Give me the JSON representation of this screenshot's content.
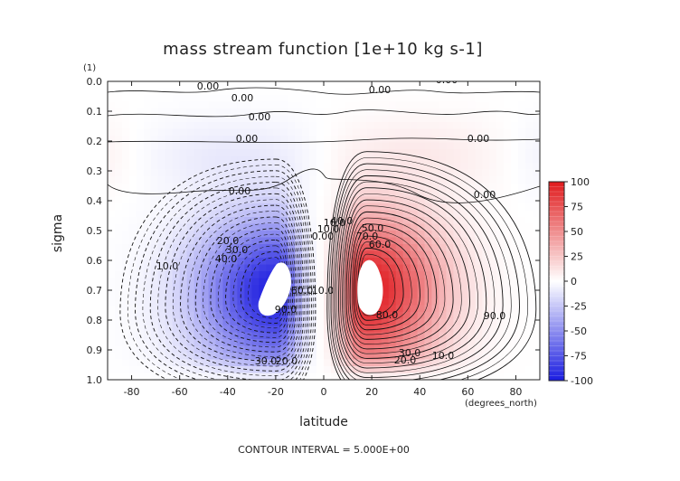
{
  "chart_data": {
    "type": "heatmap",
    "title": "mass stream function [1e+10 kg s-1]",
    "xlabel": "latitude",
    "ylabel": "sigma",
    "x_units": "(degrees_north)",
    "y_units_label": "(1)",
    "xlim": [
      -90,
      90
    ],
    "ylim": [
      1.0,
      0.0
    ],
    "x_ticks": [
      "-80",
      "-60",
      "-40",
      "-20",
      "0",
      "20",
      "40",
      "60",
      "80"
    ],
    "y_ticks": [
      "0.0",
      "0.1",
      "0.2",
      "0.3",
      "0.4",
      "0.5",
      "0.6",
      "0.7",
      "0.8",
      "0.9",
      "1.0"
    ],
    "colorbar": {
      "ticks": [
        "100",
        "75",
        "50",
        "25",
        "0",
        "-25",
        "-50",
        "-75",
        "-100"
      ],
      "range": [
        -100,
        100
      ],
      "positive_color": "#e8242b",
      "negative_color": "#2b2ee0"
    },
    "contour_interval": 5.0,
    "footer": "CONTOUR INTERVAL = 5.000E+00",
    "contour_labels": [
      "0.00",
      "0.00",
      "0.00",
      "0.00",
      "0.00",
      "0.00",
      "0.00",
      "0.00",
      "0.00",
      "20.0",
      "30.0",
      "40.0",
      "10.0",
      "10.0",
      "60.0",
      "90.0",
      "30.0",
      "20.0",
      "0.00",
      "10.0",
      "10.0",
      "40.0",
      "50.0",
      "70.0",
      "60.0",
      "80.0",
      "90.0",
      "10.0",
      "20.0",
      "30.0"
    ],
    "cells": [
      {
        "name": "southern-hemisphere-cell",
        "sign": "negative",
        "center_lat": -20,
        "center_sigma": 0.7,
        "max_magnitude": 100
      },
      {
        "name": "northern-hemisphere-cell",
        "sign": "positive",
        "center_lat": 18,
        "center_sigma": 0.69,
        "max_magnitude": 100
      }
    ]
  }
}
